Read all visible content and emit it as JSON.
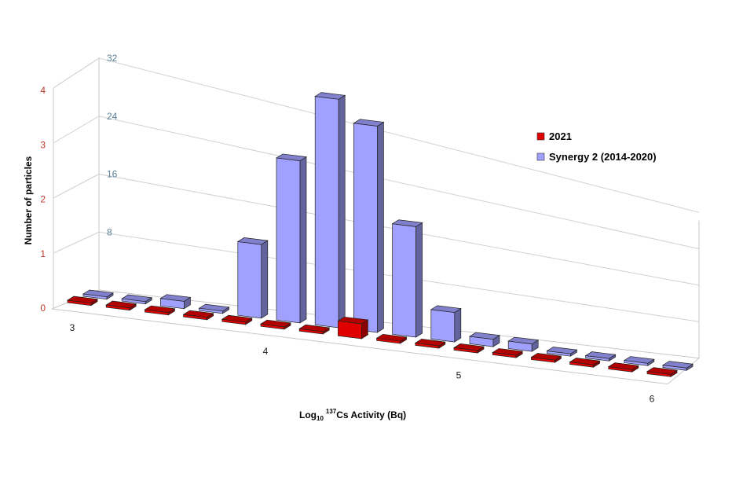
{
  "chart_data": {
    "type": "bar",
    "title": "",
    "ylabel": "Number of particles",
    "xlabel": {
      "prefix": "Log",
      "sub": "10",
      "sup": "137",
      "suffix": "Cs Activity (Bq)"
    },
    "x_bins": [
      3.0,
      3.2,
      3.4,
      3.6,
      3.8,
      4.0,
      4.2,
      4.4,
      4.6,
      4.8,
      5.0,
      5.2,
      5.4,
      5.6,
      5.8,
      6.0
    ],
    "x_tick_labels": [
      "3",
      "4",
      "5",
      "6"
    ],
    "xlim": [
      3,
      6
    ],
    "primary_y": {
      "ticks": [
        "0",
        "1",
        "2",
        "3",
        "4"
      ],
      "ylim": [
        0,
        4
      ],
      "color": "#c0392b"
    },
    "secondary_y": {
      "ticks": [
        "8",
        "16",
        "24",
        "32"
      ],
      "ylim": [
        0,
        32
      ],
      "color": "#5b7f96"
    },
    "grid": true,
    "legend_position": "top-right",
    "series": [
      {
        "name": "2021",
        "axis": "primary",
        "color": "#e00000",
        "values": [
          0,
          0,
          0,
          0,
          0,
          0,
          0,
          1,
          0,
          0,
          0,
          0,
          0,
          0,
          0,
          0
        ]
      },
      {
        "name": "Synergy 2 (2014-2020)",
        "axis": "secondary",
        "color": "#a0a0ff",
        "values": [
          0,
          0,
          1,
          0,
          10,
          22,
          31,
          28,
          15,
          4,
          1,
          1,
          0,
          0,
          0,
          0
        ]
      }
    ]
  }
}
